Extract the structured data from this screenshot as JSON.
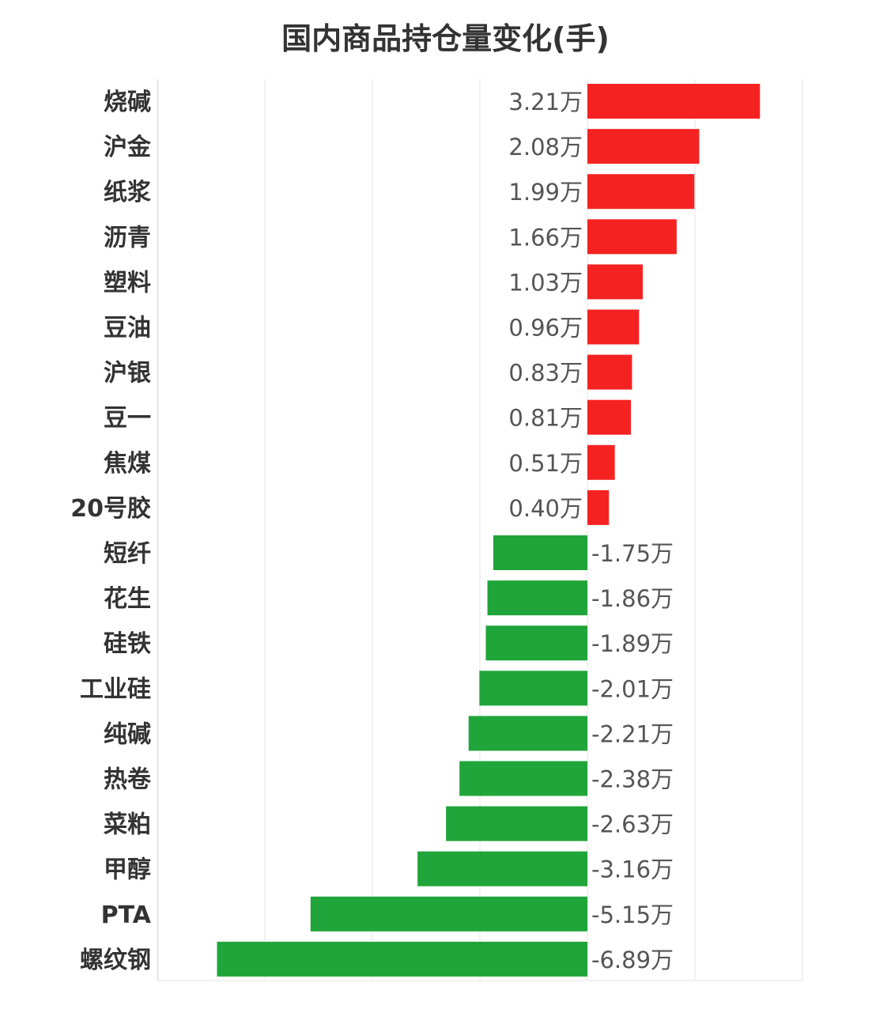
{
  "chart_data": {
    "type": "bar",
    "orientation": "horizontal",
    "title": "国内商品持仓量变化(手)",
    "xlim": [
      -8,
      4
    ],
    "grid": true,
    "colors": {
      "positive": "#f52222",
      "negative": "#1fa539",
      "grid": "#e5e5e5"
    },
    "categories": [
      "烧碱",
      "沪金",
      "纸浆",
      "沥青",
      "塑料",
      "豆油",
      "沪银",
      "豆一",
      "焦煤",
      "20号胶",
      "短纤",
      "花生",
      "硅铁",
      "工业硅",
      "纯碱",
      "热卷",
      "菜粕",
      "甲醇",
      "PTA",
      "螺纹钢"
    ],
    "values": [
      3.21,
      2.08,
      1.99,
      1.66,
      1.03,
      0.96,
      0.83,
      0.81,
      0.51,
      0.4,
      -1.75,
      -1.86,
      -1.89,
      -2.01,
      -2.21,
      -2.38,
      -2.63,
      -3.16,
      -5.15,
      -6.89
    ],
    "labels": [
      "3.21万",
      "2.08万",
      "1.99万",
      "1.66万",
      "1.03万",
      "0.96万",
      "0.83万",
      "0.81万",
      "0.51万",
      "0.40万",
      "-1.75万",
      "-1.86万",
      "-1.89万",
      "-2.01万",
      "-2.21万",
      "-2.38万",
      "-2.63万",
      "-3.16万",
      "-5.15万",
      "-6.89万"
    ]
  }
}
